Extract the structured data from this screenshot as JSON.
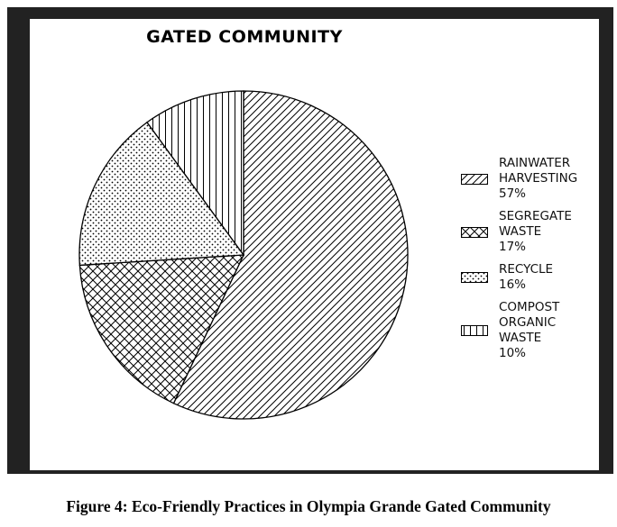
{
  "chart_data": {
    "type": "pie",
    "title": "GATED COMMUNITY",
    "slices": [
      {
        "label": "RAINWATER\nHARVESTING\n57%",
        "value": 57,
        "pattern": "diagonal-hatch"
      },
      {
        "label": "SEGREGATE\nWASTE\n17%",
        "value": 17,
        "pattern": "cross-hatch"
      },
      {
        "label": "RECYCLE\n16%",
        "value": 16,
        "pattern": "dots"
      },
      {
        "label": "COMPOST\nORGANIC\nWASTE\n10%",
        "value": 10,
        "pattern": "vertical-lines"
      }
    ],
    "start_angle": "top (12 o'clock)",
    "direction": "clockwise",
    "legend_position": "right"
  },
  "caption": "Figure 4: Eco-Friendly Practices in Olympia Grande Gated Community",
  "colors": {
    "frame": "#222222",
    "panel": "#ffffff",
    "ink": "#000000"
  }
}
